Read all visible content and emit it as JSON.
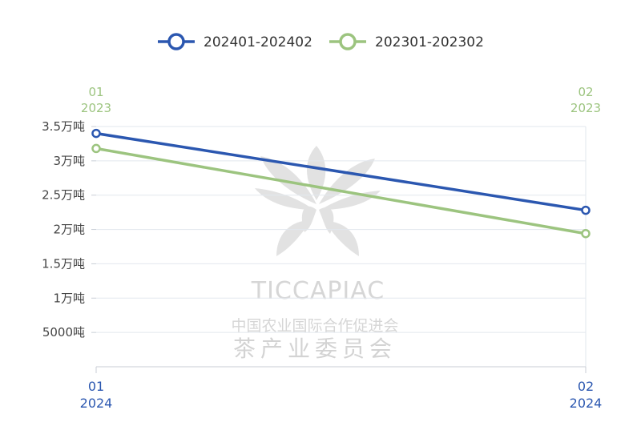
{
  "colors": {
    "series_2024": "#2b57b0",
    "series_2023": "#9cc47f",
    "grid": "#e2e7ee",
    "watermark": "#d6d6d6"
  },
  "watermark": {
    "latin": "TICCAPIAC",
    "line1": "中国农业国际合作促进会",
    "line2": "茶产业委员会"
  },
  "chart_data": {
    "type": "line",
    "grid": true,
    "legend_position": "top",
    "ylim": [
      0,
      35000
    ],
    "y_ticks": [
      {
        "value": 35000,
        "label": "3.5万吨"
      },
      {
        "value": 30000,
        "label": "3万吨"
      },
      {
        "value": 25000,
        "label": "2.5万吨"
      },
      {
        "value": 20000,
        "label": "2万吨"
      },
      {
        "value": 15000,
        "label": "1.5万吨"
      },
      {
        "value": 10000,
        "label": "1万吨"
      },
      {
        "value": 5000,
        "label": "5000吨"
      }
    ],
    "x_bottom": [
      {
        "month": "01",
        "year": "2024"
      },
      {
        "month": "02",
        "year": "2024"
      }
    ],
    "x_top": [
      {
        "month": "01",
        "year": "2023"
      },
      {
        "month": "02",
        "year": "2023"
      }
    ],
    "series": [
      {
        "name": "202401-202402",
        "values": [
          34000,
          22800
        ]
      },
      {
        "name": "202301-202302",
        "values": [
          31800,
          19400
        ]
      }
    ]
  }
}
